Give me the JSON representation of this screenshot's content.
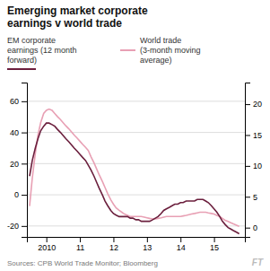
{
  "chart_data": {
    "type": "line",
    "title": "Emerging market corporate\nearnings v world trade",
    "annotations": [
      "Sources: CPB World Trade Monitor; Bloomberg",
      "FT"
    ],
    "x": [
      2009.5,
      2009.58,
      2009.67,
      2009.75,
      2009.83,
      2009.92,
      2010.0,
      2010.08,
      2010.17,
      2010.25,
      2010.33,
      2010.42,
      2010.5,
      2010.58,
      2010.67,
      2010.75,
      2010.83,
      2010.92,
      2011.0,
      2011.08,
      2011.17,
      2011.25,
      2011.33,
      2011.42,
      2011.5,
      2011.58,
      2011.67,
      2011.75,
      2011.83,
      2011.92,
      2012.0,
      2012.08,
      2012.17,
      2012.25,
      2012.33,
      2012.42,
      2012.5,
      2012.58,
      2012.67,
      2012.75,
      2012.83,
      2012.92,
      2013.0,
      2013.08,
      2013.17,
      2013.25,
      2013.33,
      2013.42,
      2013.5,
      2013.58,
      2013.67,
      2013.75,
      2013.83,
      2013.92,
      2014.0,
      2014.08,
      2014.17,
      2014.25,
      2014.33,
      2014.42,
      2014.5,
      2014.58,
      2014.67,
      2014.75,
      2014.83,
      2014.92,
      2015.0,
      2015.08,
      2015.17,
      2015.25,
      2015.33,
      2015.42,
      2015.5,
      2015.58,
      2015.67,
      2015.75
    ],
    "series": [
      {
        "name": "EM corporate\nearnings (12 month\nforward)",
        "color": "#6b1f3d",
        "values": [
          12,
          22,
          30,
          36,
          41,
          44,
          46,
          46,
          45,
          44,
          42,
          40,
          38,
          36,
          34,
          32,
          30,
          28,
          26,
          24,
          22,
          19,
          16,
          12,
          8,
          4,
          0,
          -4,
          -7,
          -10,
          -12,
          -13,
          -14,
          -14,
          -14,
          -14,
          -15,
          -15,
          -16,
          -16,
          -17,
          -17,
          -17,
          -17,
          -16,
          -15,
          -14,
          -12,
          -10,
          -9,
          -8,
          -7,
          -6,
          -6,
          -5,
          -5,
          -4,
          -4,
          -4,
          -4,
          -3,
          -3,
          -3,
          -4,
          -5,
          -7,
          -9,
          -11,
          -14,
          -17,
          -19,
          -21,
          -22,
          -23,
          -24,
          -25
        ]
      },
      {
        "name": "World trade\n(3-month moving\naverage)",
        "color": "#e8a0b4",
        "axis": "y2",
        "values": [
          3.5,
          8,
          12,
          15,
          17,
          18.5,
          19,
          19.2,
          19,
          18.5,
          18,
          17.5,
          17,
          16.5,
          16,
          15.5,
          15,
          14.5,
          14,
          13.5,
          13,
          12.5,
          11.5,
          10.5,
          9.5,
          8.5,
          7.5,
          6.5,
          5.5,
          4.5,
          3.8,
          3.2,
          2.8,
          2.5,
          2.2,
          2.0,
          1.8,
          1.8,
          1.8,
          1.8,
          1.8,
          1.7,
          1.6,
          1.5,
          1.4,
          1.4,
          1.5,
          1.6,
          1.7,
          1.8,
          1.8,
          1.8,
          1.8,
          1.8,
          1.8,
          1.9,
          2.0,
          2.1,
          2.2,
          2.3,
          2.4,
          2.5,
          2.5,
          2.5,
          2.4,
          2.3,
          2.2,
          2.0,
          1.8,
          1.5,
          1.2,
          1.0,
          0.8,
          0.6,
          0.4,
          0.2
        ]
      }
    ],
    "xlim": [
      2009.42,
      2015.92
    ],
    "xticks": [
      2010,
      {
        "value": 2011,
        "label": "11"
      },
      {
        "value": 2012,
        "label": "12"
      },
      {
        "value": 2013,
        "label": "13"
      },
      {
        "value": 2014,
        "label": "14"
      },
      {
        "value": 2015,
        "label": "15"
      }
    ],
    "ylim": [
      -27,
      72
    ],
    "yticks": [
      -20,
      0,
      20,
      40,
      60
    ],
    "y2lim": [
      -1.5,
      23.5
    ],
    "y2ticks": [
      0,
      5,
      10,
      15,
      20
    ],
    "grid": true,
    "legend": "top"
  }
}
